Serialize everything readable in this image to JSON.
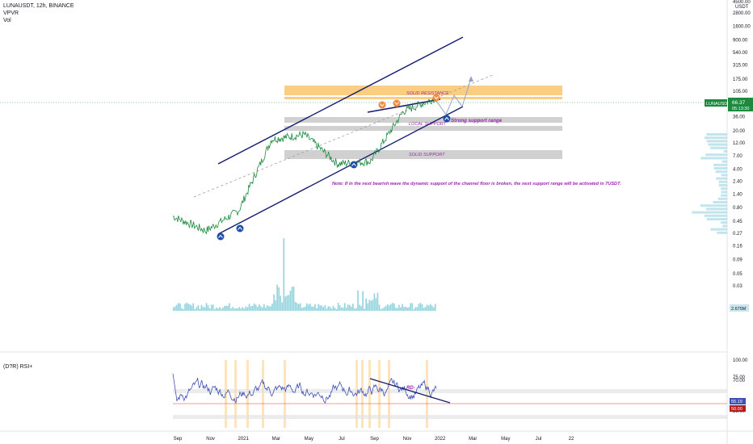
{
  "header": {
    "symbol_line": "LUNAUSDT, 12h, BINANCE",
    "indicator_1": "VPVR",
    "indicator_2": "Vol"
  },
  "rsi_header": "(D?R) RSI+",
  "colors": {
    "price": "#1b8a3e",
    "channel": "#131c70",
    "resistance": "#f9a825",
    "support": "#9e9e9e",
    "volume": "#6cc3d1",
    "rsi": "#3f51b5",
    "rsi_band": "#ffe0b2",
    "accent": "#9c27b0",
    "price_tag": "#1b8a3e"
  },
  "price_axis": {
    "unit": "USDT",
    "ticks": [
      "4500.00",
      "2800.00",
      "1600.00",
      "900.00",
      "540.00",
      "315.00",
      "175.00",
      "105.00",
      "60.00",
      "36.00",
      "20.00",
      "12.00",
      "7.00",
      "4.00",
      "2.40",
      "1.40",
      "0.80",
      "0.45",
      "0.27",
      "0.16",
      "0.09",
      "0.05",
      "0.03"
    ],
    "last_price": "66.37",
    "countdown": "05:13:30",
    "symbol_tag": "LUNAUSDT",
    "volume_tag": "2.675M"
  },
  "rsi_axis": {
    "ticks": [
      "100.00",
      "75.00",
      "70.00",
      "30.00",
      "25.00"
    ],
    "current": "55.19",
    "level": "50.00"
  },
  "time_axis": [
    "Sep",
    "Nov",
    "2021",
    "Mar",
    "May",
    "Jul",
    "Sep",
    "Nov",
    "2022",
    "Mar",
    "May",
    "Jul",
    "22"
  ],
  "zones": [
    {
      "label": "SOLID RESISTANCE",
      "type": "resistance",
      "low": 75,
      "high": 120
    },
    {
      "label": "LOCAL SUPPORT",
      "type": "support",
      "low": 26,
      "high": 37
    },
    {
      "label": "SOLID SUPPORT",
      "type": "support",
      "low": 7,
      "high": 10
    }
  ],
  "annotations": {
    "strong_support": "Strong support range",
    "note": "Note: If in the next bearish wave the dynamic support of the channel floor is broken, the next support range will be activated in 7USDT.",
    "rsi_divergence": "RD-"
  },
  "chart_data": {
    "type": "line",
    "scale": "log",
    "ylim": [
      0.02,
      6000
    ],
    "x": [
      "2020-09",
      "2020-11",
      "2021-01",
      "2021-03",
      "2021-05",
      "2021-07",
      "2021-09",
      "2021-11",
      "2022-01"
    ],
    "series": [
      {
        "values": [
          0.55,
          0.3,
          0.7,
          14,
          17,
          5,
          5.5,
          45,
          80
        ]
      }
    ],
    "rsi": {
      "ylim": [
        0,
        100
      ],
      "levels": [
        70,
        50,
        30
      ]
    }
  }
}
